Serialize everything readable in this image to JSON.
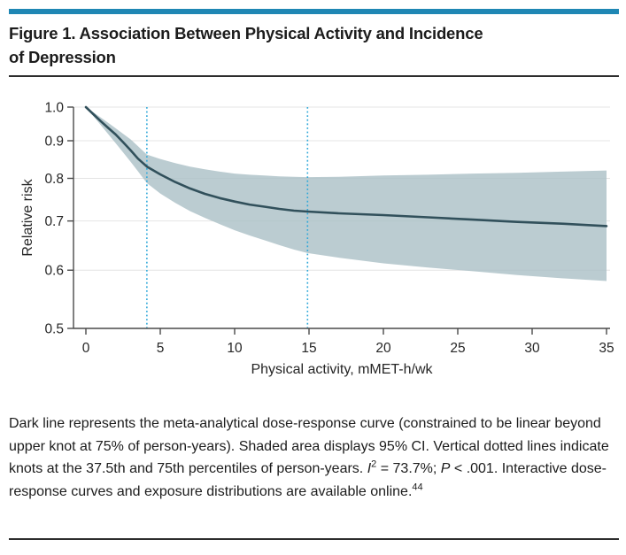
{
  "figure": {
    "title_line1": "Figure 1. Association Between Physical Activity and Incidence",
    "title_line2": "of Depression"
  },
  "caption": {
    "segments": [
      {
        "t": "Dark line represents the meta-analytical dose-response curve (constrained to be linear beyond upper knot at 75% of person-years). Shaded area displays 95% CI. Vertical dotted lines indicate knots at the 37.5th and 75th percentiles of person-years. "
      },
      {
        "t": "I",
        "style": "italic"
      },
      {
        "t": "2",
        "style": "sup"
      },
      {
        "t": " = 73.7%; "
      },
      {
        "t": "P",
        "style": "italic"
      },
      {
        "t": " < .001. Interactive dose-response curves and exposure distributions are available online."
      },
      {
        "t": "44",
        "style": "sup"
      }
    ]
  },
  "colors": {
    "accent_bar": "#1f87b4",
    "rule": "#2d2d2d",
    "text": "#1c1c1c",
    "curve": "#31505b",
    "ci_band": "#aabfc6",
    "knot_line": "#2fa8d9",
    "gridline": "#e4e4e4",
    "axis": "#4a4a4a",
    "tick_text": "#262626"
  },
  "chart_data": {
    "type": "line",
    "title": "",
    "xlabel": "Physical activity, mMET-h/wk",
    "ylabel": "Relative risk",
    "xlim": [
      0,
      35
    ],
    "ylim": [
      0.5,
      1.0
    ],
    "yscale": "log",
    "grid": true,
    "xticks": [
      0,
      5,
      10,
      15,
      20,
      25,
      30,
      35
    ],
    "yticks": [
      1.0,
      0.9,
      0.8,
      0.7,
      0.6,
      0.5
    ],
    "ytick_labels": [
      "1.0",
      "0.9",
      "0.8",
      "0.7",
      "0.6",
      "0.5"
    ],
    "knots_x": [
      4.1,
      14.9
    ],
    "knots_note": "knots at 37.5th and 75th percentiles of person-years",
    "series": [
      {
        "name": "meta-analytical dose-response curve",
        "x": [
          0,
          0.5,
          1,
          1.5,
          2,
          2.5,
          3,
          3.5,
          4.1,
          5,
          6,
          7,
          8,
          9,
          10,
          11,
          12,
          13,
          14,
          14.9,
          17,
          20,
          23,
          26,
          29,
          32,
          35
        ],
        "y": [
          1.0,
          0.978,
          0.957,
          0.937,
          0.918,
          0.896,
          0.874,
          0.851,
          0.83,
          0.81,
          0.791,
          0.775,
          0.762,
          0.752,
          0.744,
          0.737,
          0.732,
          0.727,
          0.723,
          0.721,
          0.717,
          0.713,
          0.708,
          0.703,
          0.698,
          0.694,
          0.689
        ]
      }
    ],
    "ci_band": {
      "name": "95% CI",
      "x": [
        0,
        0.5,
        1,
        1.5,
        2,
        2.5,
        3,
        3.5,
        4.1,
        5,
        6,
        7,
        8,
        9,
        10,
        11,
        12,
        13,
        14,
        14.9,
        17,
        20,
        23,
        26,
        29,
        32,
        35
      ],
      "upper": [
        1.0,
        0.984,
        0.968,
        0.952,
        0.936,
        0.92,
        0.904,
        0.885,
        0.862,
        0.85,
        0.839,
        0.83,
        0.823,
        0.817,
        0.812,
        0.809,
        0.807,
        0.805,
        0.804,
        0.803,
        0.804,
        0.807,
        0.809,
        0.812,
        0.814,
        0.817,
        0.82
      ],
      "lower": [
        1.0,
        0.972,
        0.945,
        0.919,
        0.893,
        0.868,
        0.843,
        0.818,
        0.788,
        0.763,
        0.741,
        0.722,
        0.707,
        0.693,
        0.68,
        0.669,
        0.659,
        0.649,
        0.64,
        0.633,
        0.624,
        0.613,
        0.605,
        0.598,
        0.591,
        0.585,
        0.58
      ]
    }
  }
}
